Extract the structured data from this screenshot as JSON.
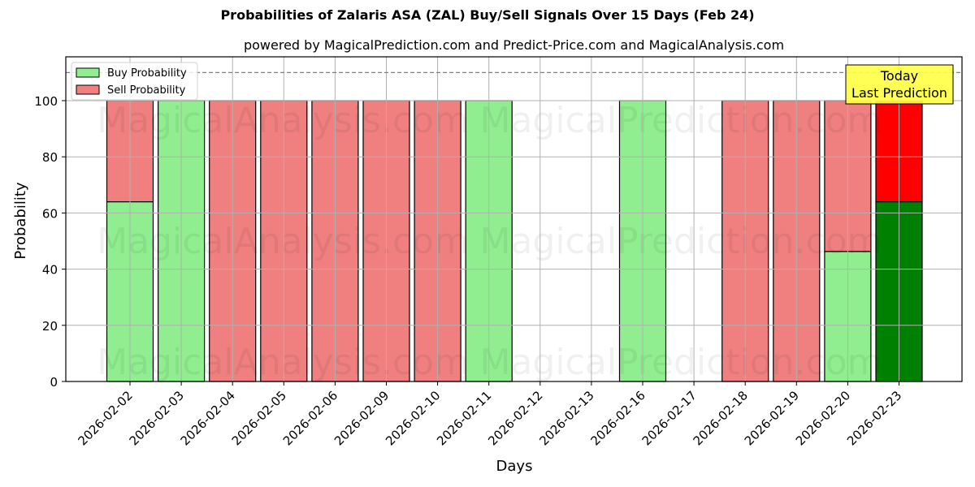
{
  "title": "Probabilities of Zalaris ASA (ZAL) Buy/Sell Signals Over 15 Days (Feb 24)",
  "subtitle": "powered by MagicalPrediction.com and Predict-Price.com and MagicalAnalysis.com",
  "colors": {
    "buy": "#90ee90",
    "sell": "#f08080",
    "today_buy": "#008000",
    "today_sell": "#ff0000",
    "annotation_bg": "#ffff44"
  },
  "legend": {
    "buy_label": "Buy Probability",
    "sell_label": "Sell Probability"
  },
  "annotation": {
    "line1": "Today",
    "line2": "Last Prediction"
  },
  "watermarks": [
    "MagicalAnalysis.com",
    "MagicalPrediction.com"
  ],
  "chart_data": {
    "type": "bar",
    "stacked": true,
    "title": "Probabilities of Zalaris ASA (ZAL) Buy/Sell Signals Over 15 Days (Feb 24)",
    "subtitle": "powered by MagicalPrediction.com and Predict-Price.com and MagicalAnalysis.com",
    "xlabel": "Days",
    "ylabel": "Probability",
    "ylim": [
      0,
      115
    ],
    "yticks": [
      0,
      20,
      40,
      60,
      80,
      100
    ],
    "grid": true,
    "legend_position": "upper left",
    "reference_line": {
      "y": 110,
      "style": "dashed"
    },
    "categories": [
      "2026-02-02",
      "2026-02-03",
      "2026-02-04",
      "2026-02-05",
      "2026-02-06",
      "2026-02-09",
      "2026-02-10",
      "2026-02-11",
      "2026-02-12",
      "2026-02-13",
      "2026-02-16",
      "2026-02-17",
      "2026-02-18",
      "2026-02-19",
      "2026-02-20",
      "2026-02-23"
    ],
    "series": [
      {
        "name": "Buy Probability",
        "values": [
          64,
          100,
          0,
          0,
          0,
          0,
          0,
          100,
          null,
          null,
          100,
          null,
          0,
          0,
          46.3,
          64
        ]
      },
      {
        "name": "Sell Probability",
        "values": [
          36,
          0,
          100,
          100,
          100,
          100,
          100,
          0,
          null,
          null,
          0,
          null,
          100,
          100,
          53.7,
          36
        ]
      }
    ],
    "annotations": [
      {
        "text": "Today\nLast Prediction",
        "x": "2026-02-23",
        "y": 105
      }
    ]
  }
}
